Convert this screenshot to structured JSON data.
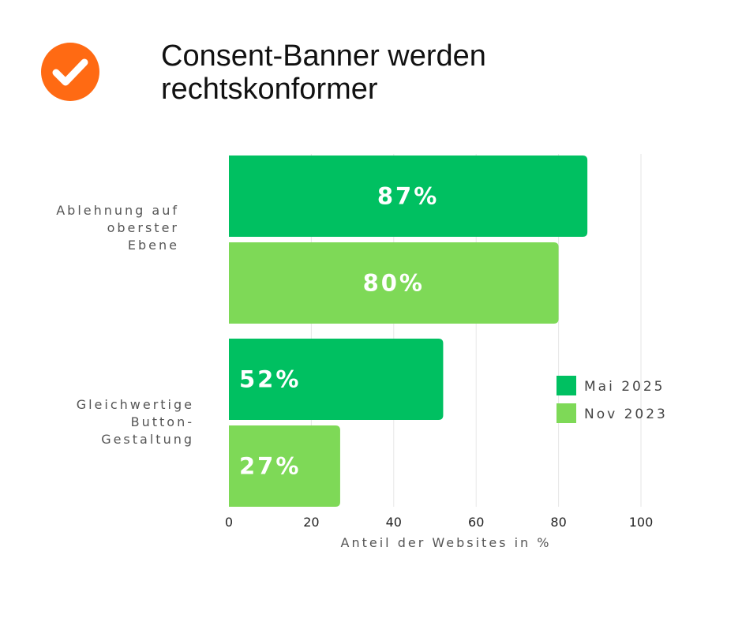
{
  "header": {
    "title_lines": [
      "Consent-Banner werden",
      "rechtskonformer"
    ],
    "badge_color": "#ff6a13",
    "badge_icon": "checkmark-icon"
  },
  "chart_data": {
    "type": "bar",
    "orientation": "horizontal",
    "title": "Consent-Banner werden rechtskonformer",
    "categories": [
      [
        "Ablehnung auf",
        "oberster",
        "Ebene"
      ],
      [
        "Gleichwertige",
        "Button-",
        "Gestaltung"
      ]
    ],
    "series": [
      {
        "name": "Mai 2025",
        "color": "#00c061",
        "values": [
          87,
          52
        ],
        "labels": [
          "87%",
          "52%"
        ]
      },
      {
        "name": "Nov 2023",
        "color": "#7ed957",
        "values": [
          80,
          27
        ],
        "labels": [
          "80%",
          "27%"
        ]
      }
    ],
    "xlabel": "Anteil der Websites in %",
    "ylabel": "",
    "xlim": [
      0,
      100
    ],
    "xticks": [
      "0",
      "20",
      "40",
      "60",
      "80",
      "100"
    ],
    "grid": true,
    "legend": "right"
  }
}
